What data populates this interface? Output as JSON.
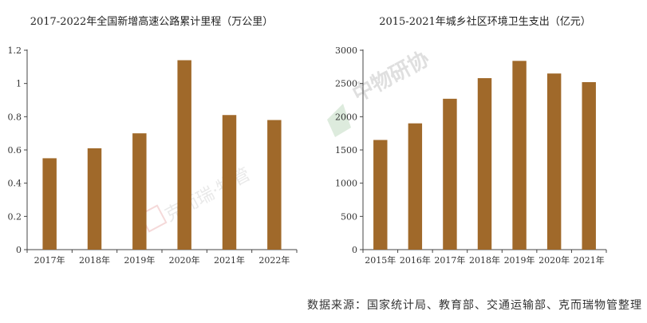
{
  "colors": {
    "bar": "#A0692A",
    "axis": "#444444"
  },
  "chart_data": [
    {
      "type": "bar",
      "title": "2017-2022年全国新增高速公路累计里程（万公里）",
      "categories": [
        "2017年",
        "2018年",
        "2019年",
        "2020年",
        "2021年",
        "2022年"
      ],
      "values": [
        0.55,
        0.61,
        0.7,
        1.14,
        0.81,
        0.78
      ],
      "ylim": [
        0,
        1.2
      ],
      "yticks": [
        "0",
        "0.2",
        "0.4",
        "0.6",
        "0.8",
        "1",
        "1.2"
      ],
      "grid": false,
      "watermark": "克而瑞·物管"
    },
    {
      "type": "bar",
      "title": "2015-2021年城乡社区环境卫生支出（亿元）",
      "categories": [
        "2015年",
        "2016年",
        "2017年",
        "2018年",
        "2019年",
        "2020年",
        "2021年"
      ],
      "values": [
        1650,
        1900,
        2270,
        2580,
        2840,
        2650,
        2520
      ],
      "ylim": [
        0,
        3000
      ],
      "yticks": [
        "0",
        "500",
        "1000",
        "1500",
        "2000",
        "2500",
        "3000"
      ],
      "grid": false,
      "watermark": "中物研协"
    }
  ],
  "source_text": "数据来源：国家统计局、教育部、交通运输部、克而瑞物管整理"
}
